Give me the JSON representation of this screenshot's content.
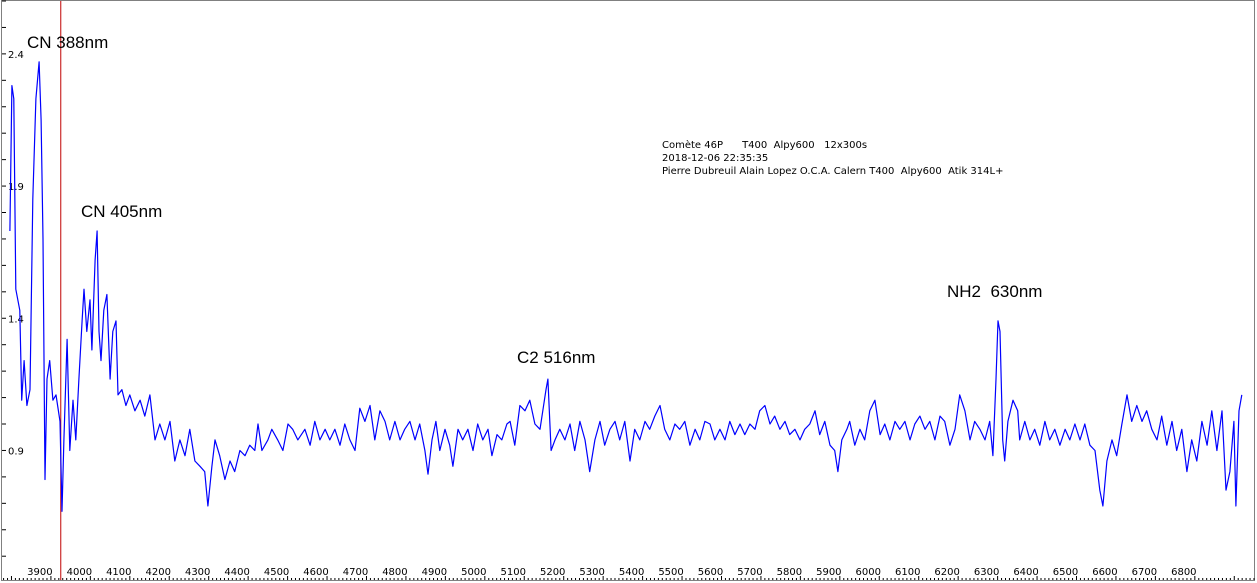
{
  "chart_data": {
    "type": "line",
    "title": "",
    "xlabel": "",
    "ylabel": "",
    "xlim": [
      3776,
      6950
    ],
    "ylim": [
      0.41,
      2.6
    ],
    "grid": false,
    "x_ticks": [
      3900,
      4000,
      4100,
      4200,
      4300,
      4400,
      4500,
      4600,
      4700,
      4800,
      4900,
      5000,
      5100,
      5200,
      5300,
      5400,
      5500,
      5600,
      5700,
      5800,
      5900,
      6000,
      6100,
      6200,
      6300,
      6400,
      6500,
      6600,
      6700,
      6800
    ],
    "x_tick_labels": [
      "3900",
      "4000",
      "4100",
      "4200",
      "4300",
      "4400",
      "4500",
      "4600",
      "4700",
      "4800",
      "4900",
      "5000",
      "5100",
      "5200",
      "5300",
      "5400",
      "5500",
      "5600",
      "5700",
      "5800",
      "5900",
      "6000",
      "6100",
      "6200",
      "6300",
      "6400",
      "6500",
      "6600",
      "6700",
      "6800"
    ],
    "y_ticks": [
      0.9,
      1.4,
      1.9,
      2.4
    ],
    "y_tick_labels": [
      "0.9",
      "1.4",
      "1.9",
      "2.4"
    ],
    "cursor_x": 3925,
    "colors": {
      "series": "#0000ff",
      "cursor": "#c00000",
      "frame": "#808080"
    },
    "annotations": [
      {
        "text": "CN 388nm"
      },
      {
        "text": "CN 405nm"
      },
      {
        "text": "C2 516nm"
      },
      {
        "text": "NH2  630nm"
      }
    ],
    "info_lines": [
      "Comète 46P      T400  Alpy600   12x300s",
      "2018-12-06 22:35:35",
      "Pierre Dubreuil Alain Lopez O.C.A. Calern T400  Alpy600  Atik 314L+"
    ],
    "series": [
      {
        "x": [
          3796,
          3801,
          3806,
          3811,
          3821,
          3826,
          3832,
          3839,
          3847,
          3854,
          3862,
          3870,
          3875,
          3880,
          3885,
          3890,
          3897,
          3905,
          3913,
          3923,
          3928,
          3933,
          3941,
          3948,
          3956,
          3963,
          3971,
          3979,
          3984,
          3991,
          3999,
          4004,
          4012,
          4017,
          4022,
          4027,
          4034,
          4042,
          4050,
          4057,
          4065,
          4070,
          4080,
          4090,
          4100,
          4113,
          4126,
          4138,
          4151,
          4164,
          4176,
          4189,
          4202,
          4214,
          4227,
          4240,
          4252,
          4265,
          4278,
          4290,
          4298,
          4308,
          4316,
          4328,
          4341,
          4354,
          4366,
          4379,
          4392,
          4404,
          4417,
          4425,
          4435,
          4450,
          4460,
          4475,
          4488,
          4501,
          4513,
          4526,
          4544,
          4557,
          4569,
          4582,
          4595,
          4607,
          4620,
          4633,
          4645,
          4658,
          4671,
          4683,
          4696,
          4709,
          4721,
          4734,
          4747,
          4759,
          4772,
          4785,
          4797,
          4810,
          4823,
          4835,
          4848,
          4856,
          4866,
          4876,
          4886,
          4899,
          4911,
          4919,
          4932,
          4944,
          4957,
          4970,
          4982,
          4995,
          5008,
          5018,
          5031,
          5043,
          5056,
          5064,
          5076,
          5089,
          5102,
          5114,
          5127,
          5140,
          5147,
          5155,
          5160,
          5168,
          5178,
          5190,
          5203,
          5216,
          5228,
          5241,
          5254,
          5266,
          5279,
          5292,
          5304,
          5317,
          5330,
          5342,
          5355,
          5368,
          5380,
          5393,
          5406,
          5418,
          5431,
          5444,
          5456,
          5469,
          5482,
          5494,
          5507,
          5520,
          5533,
          5545,
          5558,
          5571,
          5583,
          5596,
          5609,
          5621,
          5634,
          5647,
          5659,
          5672,
          5685,
          5697,
          5710,
          5723,
          5735,
          5748,
          5761,
          5773,
          5786,
          5799,
          5811,
          5824,
          5837,
          5849,
          5862,
          5875,
          5887,
          5895,
          5905,
          5918,
          5925,
          5938,
          5951,
          5963,
          5976,
          5989,
          6002,
          6014,
          6027,
          6040,
          6052,
          6065,
          6078,
          6090,
          6103,
          6116,
          6128,
          6141,
          6154,
          6166,
          6179,
          6192,
          6204,
          6217,
          6230,
          6242,
          6255,
          6268,
          6280,
          6288,
          6296,
          6301,
          6306,
          6313,
          6318,
          6326,
          6339,
          6351,
          6356,
          6369,
          6382,
          6394,
          6407,
          6420,
          6432,
          6445,
          6458,
          6471,
          6483,
          6496,
          6509,
          6521,
          6534,
          6547,
          6559,
          6567,
          6577,
          6590,
          6602,
          6615,
          6628,
          6640,
          6653,
          6666,
          6678,
          6691,
          6704,
          6716,
          6729,
          6742,
          6754,
          6767,
          6780,
          6792,
          6805,
          6818,
          6831,
          6843,
          6856,
          6869,
          6879,
          6889,
          6899,
          6904,
          6912,
          6919
        ],
        "y": [
          1.73,
          2.28,
          2.23,
          1.51,
          1.43,
          1.09,
          1.24,
          1.07,
          1.13,
          1.85,
          2.23,
          2.37,
          2.15,
          1.7,
          0.79,
          1.17,
          1.24,
          1.09,
          1.11,
          1.01,
          0.67,
          0.94,
          1.32,
          0.9,
          1.09,
          0.94,
          1.17,
          1.39,
          1.51,
          1.35,
          1.47,
          1.28,
          1.62,
          1.73,
          1.35,
          1.24,
          1.43,
          1.49,
          1.17,
          1.35,
          1.39,
          1.11,
          1.13,
          1.07,
          1.11,
          1.05,
          1.09,
          1.03,
          1.11,
          0.94,
          1.0,
          0.94,
          1.01,
          0.86,
          0.94,
          0.88,
          0.98,
          0.86,
          0.84,
          0.82,
          0.69,
          0.84,
          0.94,
          0.88,
          0.79,
          0.86,
          0.82,
          0.9,
          0.88,
          0.92,
          0.9,
          1.0,
          0.9,
          0.94,
          0.98,
          0.94,
          0.9,
          1.0,
          0.98,
          0.94,
          0.98,
          0.92,
          1.01,
          0.94,
          0.98,
          0.94,
          0.98,
          0.92,
          1.0,
          0.94,
          0.9,
          1.06,
          1.01,
          1.07,
          0.94,
          1.05,
          1.01,
          0.94,
          1.01,
          0.94,
          0.98,
          1.01,
          0.94,
          1.0,
          0.9,
          0.81,
          0.94,
          1.01,
          0.9,
          0.98,
          0.92,
          0.84,
          0.98,
          0.94,
          0.98,
          0.9,
          1.0,
          0.94,
          0.98,
          0.88,
          0.96,
          0.94,
          1.0,
          1.01,
          0.92,
          1.07,
          1.05,
          1.09,
          1.0,
          0.98,
          1.05,
          1.13,
          1.17,
          0.9,
          0.94,
          0.98,
          0.94,
          1.0,
          0.9,
          1.01,
          0.94,
          0.82,
          0.94,
          1.01,
          0.92,
          0.98,
          1.01,
          0.94,
          1.01,
          0.86,
          0.98,
          0.94,
          1.01,
          0.98,
          1.03,
          1.07,
          0.98,
          0.94,
          1.0,
          0.98,
          1.01,
          0.92,
          0.98,
          0.94,
          1.01,
          1.0,
          0.94,
          0.98,
          0.94,
          1.01,
          0.96,
          1.0,
          0.96,
          1.0,
          0.98,
          1.05,
          1.07,
          1.0,
          1.03,
          0.98,
          1.01,
          0.96,
          0.98,
          0.94,
          0.98,
          1.0,
          1.05,
          0.96,
          1.01,
          0.92,
          0.9,
          0.82,
          0.94,
          0.98,
          1.01,
          0.92,
          0.98,
          0.94,
          1.05,
          1.09,
          0.96,
          1.0,
          0.94,
          1.01,
          0.98,
          1.01,
          0.94,
          1.0,
          1.03,
          0.98,
          1.01,
          0.94,
          1.03,
          1.01,
          0.92,
          0.98,
          1.11,
          1.05,
          0.94,
          1.01,
          0.98,
          0.94,
          1.01,
          0.88,
          1.17,
          1.39,
          1.35,
          0.94,
          0.86,
          1.01,
          1.09,
          1.05,
          0.94,
          1.01,
          0.94,
          0.98,
          0.92,
          1.01,
          0.94,
          0.98,
          0.92,
          0.98,
          0.94,
          1.0,
          0.94,
          1.0,
          0.92,
          0.9,
          0.75,
          0.69,
          0.86,
          0.94,
          0.88,
          1.0,
          1.11,
          1.01,
          1.07,
          1.01,
          1.05,
          0.98,
          0.94,
          1.03,
          0.92,
          1.01,
          0.9,
          0.98,
          0.82,
          0.94,
          0.86,
          1.01,
          0.92,
          1.05,
          0.9,
          1.05,
          0.75,
          0.82,
          1.01,
          0.69,
          1.05,
          1.11
        ]
      }
    ]
  }
}
